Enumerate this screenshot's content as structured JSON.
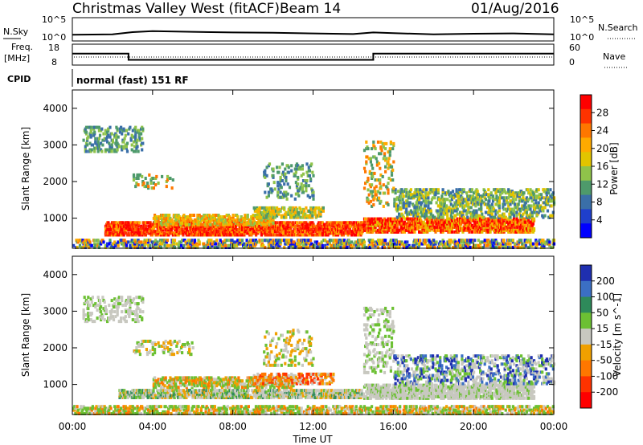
{
  "header": {
    "station": "Christmas Valley West (fitACF)",
    "beam": "Beam 14",
    "date": "01/Aug/2016"
  },
  "noise_panel": {
    "left_label": "N.Sky",
    "right_label": "N.Search",
    "left_ticks": [
      "10^5",
      "10^0"
    ],
    "right_ticks": [
      "10^5",
      "10^0"
    ]
  },
  "freq_panel": {
    "left_label_1": "Freq.",
    "left_label_2": "[MHz]",
    "right_label": "Nave",
    "left_ticks": [
      "18",
      "8"
    ],
    "right_ticks": [
      "60",
      "0"
    ]
  },
  "cpid": {
    "label": "CPID",
    "mode": "normal (fast) 151 RF"
  },
  "power_panel": {
    "ylabel": "Slant Range [km]",
    "colorbar_label": "Power [dB]",
    "colorbar_ticks": [
      "28",
      "24",
      "20",
      "16",
      "12",
      "8",
      "4"
    ],
    "colors": [
      "#ff0000",
      "#ff3300",
      "#ff7700",
      "#ffaa00",
      "#e2c400",
      "#8fc34a",
      "#4e9a6b",
      "#3a6fa8",
      "#1f3fcc",
      "#0000ff"
    ]
  },
  "velocity_panel": {
    "ylabel": "Slant Range [km]",
    "colorbar_label": "Velocity [m s^-1]",
    "colorbar_ticks": [
      "200",
      "100",
      "50",
      "15",
      "-15",
      "-50",
      "-100",
      "-200"
    ],
    "colors": [
      "#1f2fb0",
      "#3b6fc4",
      "#2e8a5a",
      "#6cc033",
      "#c8c8c0",
      "#f0a000",
      "#ff7700",
      "#ff3300",
      "#ff0000"
    ]
  },
  "xaxis": {
    "label": "Time UT",
    "ticks": [
      "00:00",
      "04:00",
      "08:00",
      "12:00",
      "16:00",
      "20:00",
      "00:00"
    ]
  },
  "chart_data": [
    {
      "type": "line",
      "panel": "noise",
      "x_hours": [
        0,
        2,
        3,
        4,
        6,
        8,
        10,
        12,
        14,
        15,
        16,
        18,
        20,
        22,
        24
      ],
      "series": [
        {
          "values": [
            1.2,
            1.3,
            2.0,
            2.3,
            2.1,
            1.9,
            1.8,
            1.6,
            1.4,
            1.9,
            1.7,
            1.3,
            1.5,
            1.6,
            1.3
          ]
        }
      ]
    },
    {
      "type": "line",
      "panel": "frequency",
      "x_hours": [
        0,
        2.8,
        2.8,
        15.0,
        15.0,
        24
      ],
      "series": [
        {
          "values": [
            13.5,
            13.5,
            10.5,
            10.5,
            13.5,
            13.5
          ]
        }
      ],
      "ylim": [
        8,
        18
      ]
    },
    {
      "type": "heatmap",
      "panel": "power",
      "xlim": [
        0,
        24
      ],
      "ylim": [
        180,
        4500
      ],
      "yticks": [
        1000,
        2000,
        3000,
        4000
      ]
    },
    {
      "type": "heatmap",
      "panel": "velocity",
      "xlim": [
        0,
        24
      ],
      "ylim": [
        180,
        4500
      ],
      "yticks": [
        1000,
        2000,
        3000,
        4000
      ]
    }
  ]
}
